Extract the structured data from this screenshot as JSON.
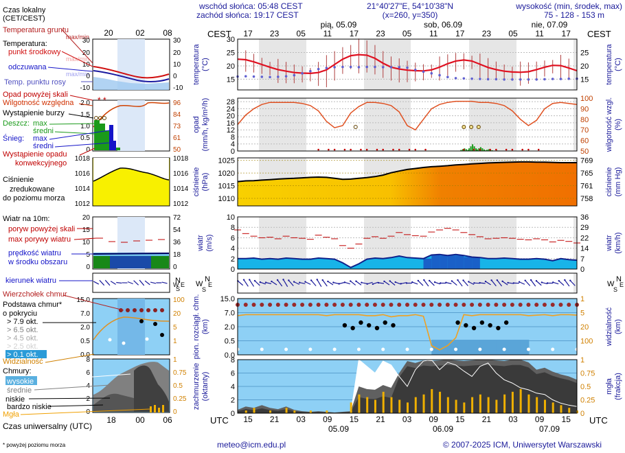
{
  "header": {
    "time_legend": [
      "Czas lokalny",
      "(CET/CEST)"
    ],
    "sunrise": "wschód słońca: 05:48 CEST",
    "sunset": "zachód słońca: 19:17 CEST",
    "coords": "21°40'27\"E, 54°10'38\"N",
    "grid_xy": "(x=260, y=350)",
    "height_title": "wysokość (min, środek, max)",
    "height_values": "75 - 128 - 153 m",
    "cest": "CEST",
    "utc": "UTC",
    "days_top": [
      "pią, 05.09",
      "sob, 06.09",
      "nie, 07.09"
    ],
    "local_hours": [
      "17",
      "23",
      "05",
      "11",
      "17",
      "23",
      "05",
      "11",
      "17",
      "23",
      "05",
      "11",
      "17"
    ],
    "utc_hours": [
      "15",
      "21",
      "03",
      "09",
      "15",
      "21",
      "03",
      "09",
      "15",
      "21",
      "03",
      "09",
      "15"
    ],
    "days_bottom": [
      "05.09",
      "06.09",
      "07.09"
    ],
    "legend_local_hours": [
      "20",
      "02",
      "08"
    ],
    "legend_utc_hours": [
      "18",
      "00",
      "06"
    ]
  },
  "legend": {
    "temperature": {
      "soil": "Temperatura gruntu",
      "maxmin": "max/min",
      "title": "Temperatura:",
      "mid": "punkt środkowy",
      "maxmin2": "max/min",
      "perceived": "odczuwana",
      "maxmin3": "max/min",
      "dew": "Temp. punktu rosy",
      "y_left": [
        "30",
        "20",
        "10",
        "0",
        "-10"
      ],
      "y_right": [
        "30",
        "20",
        "10",
        "0",
        "-10"
      ]
    },
    "precip": {
      "over_scale": "Opad powyżej skali",
      "humidity": "Wilgotność względna",
      "storm": "Wystąpienie burzy",
      "rain": "Deszcz:",
      "rain_max": "max",
      "rain_mid": "średni",
      "snow": "Śnieg:",
      "snow_max": "max",
      "snow_mid": "średni",
      "convective": "Wystąpienie opadu",
      "convective2": "konwekcyjnego",
      "y_left": [
        "2.0",
        "1.5",
        "1.0",
        "0.5",
        "0"
      ],
      "y_right": [
        "96",
        "84",
        "73",
        "61",
        "50"
      ]
    },
    "pressure": {
      "l1": "Ciśnienie",
      "l2": "zredukowane",
      "l3": "do poziomu morza",
      "y_left": [
        "1018",
        "1016",
        "1014",
        "1012"
      ],
      "y_right": [
        "1018",
        "1016",
        "1014",
        "1012"
      ]
    },
    "wind": {
      "title": "Wiatr na 10m:",
      "gust_over": "poryw powyżej skali",
      "gust_max": "max porywy wiatru",
      "speed": "prędkość wiatru",
      "speed2": "w środku obszaru",
      "y_left": [
        "20",
        "15",
        "10",
        "5",
        "0"
      ],
      "y_right": [
        "72",
        "54",
        "36",
        "18",
        "0"
      ]
    },
    "direction": {
      "label": "kierunek wiatru"
    },
    "clouds_base": {
      "top": "Wierzchołek chmur",
      "base": "Podstawa chmur*",
      "cover": "o pokryciu",
      "o79": "> 7.9 okt.",
      "o65": "> 6.5 okt.",
      "o45": "> 4.5 okt.",
      "o25": "> 2.5 okt.",
      "o01": "> 0.1 okt.",
      "vis": "Widzialność",
      "y_left": [
        "15.0",
        "7.0",
        "2.0",
        "0.5",
        "0.0"
      ],
      "y_right": [
        "100",
        "20",
        "5",
        "1"
      ]
    },
    "clouds": {
      "title": "Chmury:",
      "high": "wysokie",
      "mid": "średnie",
      "low": "niskie",
      "vlow": "bardzo niskie",
      "fog": "Mgła",
      "y_left": [
        "8",
        "6",
        "4",
        "2",
        "0"
      ],
      "y_right": [
        "1",
        "0.75",
        "0.5",
        "0.25",
        "0"
      ]
    },
    "utc_label": "Czas uniwersalny (UTC)",
    "footnote": "* powyżej poziomu morza"
  },
  "axis_titles": {
    "temp_l": "temperatura",
    "temp_l2": "(°C)",
    "temp_r": "temperatura",
    "temp_r2": "(°C)",
    "prec_l": "opad",
    "prec_l2": "(mm/h, kg/m²/h)",
    "prec_r": "wilgotność wzgl.",
    "prec_r2": "(%)",
    "pres_l": "ciśnienie",
    "pres_l2": "(hPa)",
    "pres_r": "ciśnienie",
    "pres_r2": "(mm Hg)",
    "wind_l": "wiatr",
    "wind_l2": "(m/s)",
    "wind_r": "wiatr",
    "wind_r2": "(km/h)",
    "cb_l": "pion. rozciągł. chm.",
    "cb_l2": "(km)",
    "cb_r": "widzialność",
    "cb_r2": "(km)",
    "cl_l": "zachmurzenie",
    "cl_l2": "(oktanty)",
    "cl_r": "mgła",
    "cl_r2": "(frakcja)"
  },
  "footer": {
    "email": "meteo@icm.edu.pl",
    "copyright": "© 2007-2025 ICM, Uniwersytet Warszawski"
  },
  "chart_data": [
    {
      "type": "line",
      "name": "temperature",
      "ylim": [
        11,
        30
      ],
      "y_ticks_left": [
        15,
        20,
        25,
        30
      ],
      "y_ticks_right": [
        15,
        20,
        25
      ],
      "series": [
        {
          "name": "punkt środkowy",
          "values": [
            22.5,
            22.3,
            21.5,
            20.5,
            19.5,
            18.6,
            18.0,
            17.5,
            17.3,
            17.2,
            17.5,
            18.5,
            20.5,
            22.5,
            23.8,
            24.2,
            24.0,
            22.8,
            21.0,
            19.5,
            18.8,
            18.4,
            18.2,
            18.1,
            18.5,
            19.5,
            20.8,
            21.8,
            22.2,
            21.8,
            20.6,
            19.4,
            18.6,
            18.0,
            17.7,
            17.6,
            17.8,
            18.6,
            19.5,
            20.2,
            20.1,
            19.2,
            18.2
          ]
        },
        {
          "name": "Temp. punktu rosy",
          "values": [
            16.0,
            16.1,
            16.0,
            15.9,
            15.8,
            15.9,
            16.1,
            16.5,
            17.2,
            18.0,
            18.8,
            19.2,
            19.5,
            19.6,
            19.6,
            19.5,
            19.6,
            19.6,
            19.5,
            19.5,
            19.5,
            19.3,
            18.5,
            17.8,
            17.2,
            16.5,
            15.8,
            15.4,
            15.3,
            15.2,
            15.1,
            15.0,
            15.0,
            14.9,
            14.9,
            14.9,
            14.9,
            14.9,
            15.0,
            15.1,
            15.1,
            15.2,
            15.2
          ]
        }
      ]
    },
    {
      "type": "line",
      "name": "precipitation_humidity",
      "y_ticks_left": [
        0,
        4,
        8,
        12,
        16,
        20,
        24,
        28
      ],
      "y_ticks_right": [
        50,
        60,
        70,
        80,
        90,
        100
      ],
      "ylim": [
        0,
        30
      ],
      "series": [
        {
          "name": "Wilgotność względna",
          "values": [
            75,
            84,
            90,
            94,
            96,
            96,
            96,
            96,
            95,
            93,
            88,
            78,
            72,
            74,
            86,
            92,
            96,
            96,
            95,
            93,
            87,
            74,
            70,
            80,
            90,
            94,
            96,
            97,
            97,
            97,
            96,
            96,
            95,
            93,
            88,
            80,
            74,
            79,
            90,
            95,
            96,
            95,
            94
          ]
        },
        {
          "name": "opad",
          "values": [
            0,
            0,
            0,
            0,
            0,
            0,
            0,
            0,
            0,
            0,
            0,
            0,
            0,
            0,
            0,
            0,
            0,
            0,
            0,
            0,
            0,
            0,
            0,
            0,
            0,
            0,
            0,
            0,
            1.5,
            3.8,
            2.2,
            1.0,
            0.3,
            0,
            0,
            0,
            0,
            0,
            0,
            0,
            0,
            0,
            0
          ]
        }
      ]
    },
    {
      "type": "area",
      "name": "pressure",
      "ylim": [
        1007,
        1026
      ],
      "y_ticks_left": [
        1010,
        1015,
        1020,
        1025
      ],
      "y_ticks_right": [
        758,
        761,
        765,
        769
      ],
      "values": [
        1016.6,
        1016.9,
        1017.0,
        1017.2,
        1017.4,
        1017.6,
        1017.8,
        1017.9,
        1018.1,
        1018.3,
        1018.4,
        1018.3,
        1017.9,
        1017.5,
        1017.6,
        1017.9,
        1018.2,
        1018.6,
        1019.2,
        1020.1,
        1020.8,
        1021.4,
        1021.8,
        1022.2,
        1022.5,
        1022.7,
        1022.9,
        1023.2,
        1023.4,
        1023.6,
        1023.8,
        1024.0,
        1024.1,
        1024.2,
        1024.3,
        1024.4,
        1024.4,
        1024.3,
        1024.3,
        1024.2,
        1024.1,
        1024.1,
        1024.1
      ]
    },
    {
      "type": "line",
      "name": "wind",
      "ylim": [
        0,
        10
      ],
      "y_ticks_left": [
        0,
        2,
        4,
        6,
        8,
        10
      ],
      "y_ticks_right": [
        0,
        7,
        14,
        22,
        29,
        36
      ],
      "series": [
        {
          "name": "prędkość wiatru",
          "values": [
            2.0,
            2.0,
            2.1,
            1.9,
            2.0,
            1.9,
            2.1,
            2.0,
            1.9,
            1.9,
            2.1,
            2.0,
            1.9,
            1.2,
            0.3,
            1.0,
            1.9,
            2.1,
            2.0,
            2.2,
            2.5,
            2.2,
            2.1,
            2.0,
            2.7,
            2.8,
            2.6,
            2.8,
            2.6,
            2.3,
            2.2,
            2.0,
            2.0,
            2.1,
            2.0,
            1.9,
            1.9,
            2.0,
            1.9,
            1.6,
            2.0,
            1.8,
            1.7
          ]
        },
        {
          "name": "max porywy wiatru",
          "values": [
            7.5,
            6.8,
            6.3,
            6.0,
            6.1,
            5.8,
            6.3,
            6.0,
            5.9,
            5.7,
            6.5,
            6.1,
            5.8,
            4.5,
            4.0,
            4.8,
            5.9,
            6.2,
            5.9,
            6.3,
            7.0,
            6.6,
            6.4,
            6.3,
            7.1,
            7.5,
            7.8,
            7.5,
            7.0,
            6.6,
            6.2,
            5.8,
            5.9,
            6.0,
            5.9,
            5.7,
            5.6,
            5.8,
            5.6,
            5.2,
            5.5,
            5.3,
            5.0
          ]
        }
      ]
    },
    {
      "type": "line",
      "name": "cloud_base_visibility",
      "y_ticks_left": [
        0.0,
        0.5,
        2.0,
        7.0,
        15.0
      ],
      "y_ticks_right": [
        1,
        5,
        20,
        100
      ],
      "series": [
        {
          "name": "Widzialność",
          "values": [
            20,
            22,
            22,
            22,
            22,
            22,
            22,
            22,
            22,
            22,
            22,
            20,
            22,
            22,
            22,
            22,
            20,
            20,
            22,
            18,
            20,
            20,
            22,
            19,
            1.2,
            0.8,
            1.2,
            2.5,
            22,
            20,
            22,
            22,
            22,
            22,
            22,
            22,
            20,
            21,
            22,
            20,
            22,
            22,
            21
          ]
        }
      ]
    },
    {
      "type": "area",
      "name": "cloud_cover",
      "ylim": [
        0,
        8
      ],
      "y_ticks_left": [
        0,
        2,
        4,
        6,
        8
      ],
      "y_ticks_right": [
        0,
        0.25,
        0.5,
        0.75,
        1
      ],
      "series": [
        {
          "name": "niskie",
          "values": [
            0.5,
            1.0,
            0.8,
            1.2,
            0.8,
            0.6,
            1.0,
            0.5,
            0.3,
            0.2,
            0.3,
            0.2,
            0.1,
            0.2,
            0.3,
            4.0,
            3.6,
            3.5,
            4.2,
            3.8,
            6.0,
            7.8,
            7.5,
            7.9,
            7.8,
            7.9,
            8.0,
            7.9,
            7.8,
            7.9,
            8.0,
            8.0,
            7.9,
            7.8,
            8.0,
            8.0,
            7.6,
            6.5,
            6.8,
            6.2,
            5.8,
            5.5,
            5.0
          ]
        },
        {
          "name": "średnie",
          "values": [
            0,
            0,
            0,
            0,
            0,
            0,
            0,
            0,
            0,
            0,
            0,
            0,
            0,
            0,
            0,
            8.0,
            7.0,
            6.0,
            7.8,
            7.2,
            5.5,
            4.0,
            6.5,
            7.8,
            8.0,
            6.5,
            7.6,
            7.2,
            6.3,
            5.5,
            7.0,
            7.5,
            6.0,
            5.0,
            4.5,
            3.8,
            3.5,
            3.0,
            2.8,
            2.0,
            1.5,
            1.2,
            1.0
          ]
        },
        {
          "name": "Mgła",
          "values": [
            0,
            0.05,
            0.1,
            0,
            0.05,
            0,
            0.1,
            0.05,
            0,
            0.05,
            0,
            0.05,
            0,
            0,
            0.2,
            0.35,
            0.3,
            0.25,
            0.4,
            0.3,
            0.25,
            0.2,
            0.3,
            0.35,
            0.45,
            0.4,
            0.3,
            0.25,
            0.2,
            0.3,
            0.35,
            0.3,
            0.25,
            0.35,
            0.4,
            0.45,
            0.35,
            0.3,
            0.25,
            0.2,
            0.15,
            0.1,
            0.05
          ]
        }
      ]
    }
  ]
}
